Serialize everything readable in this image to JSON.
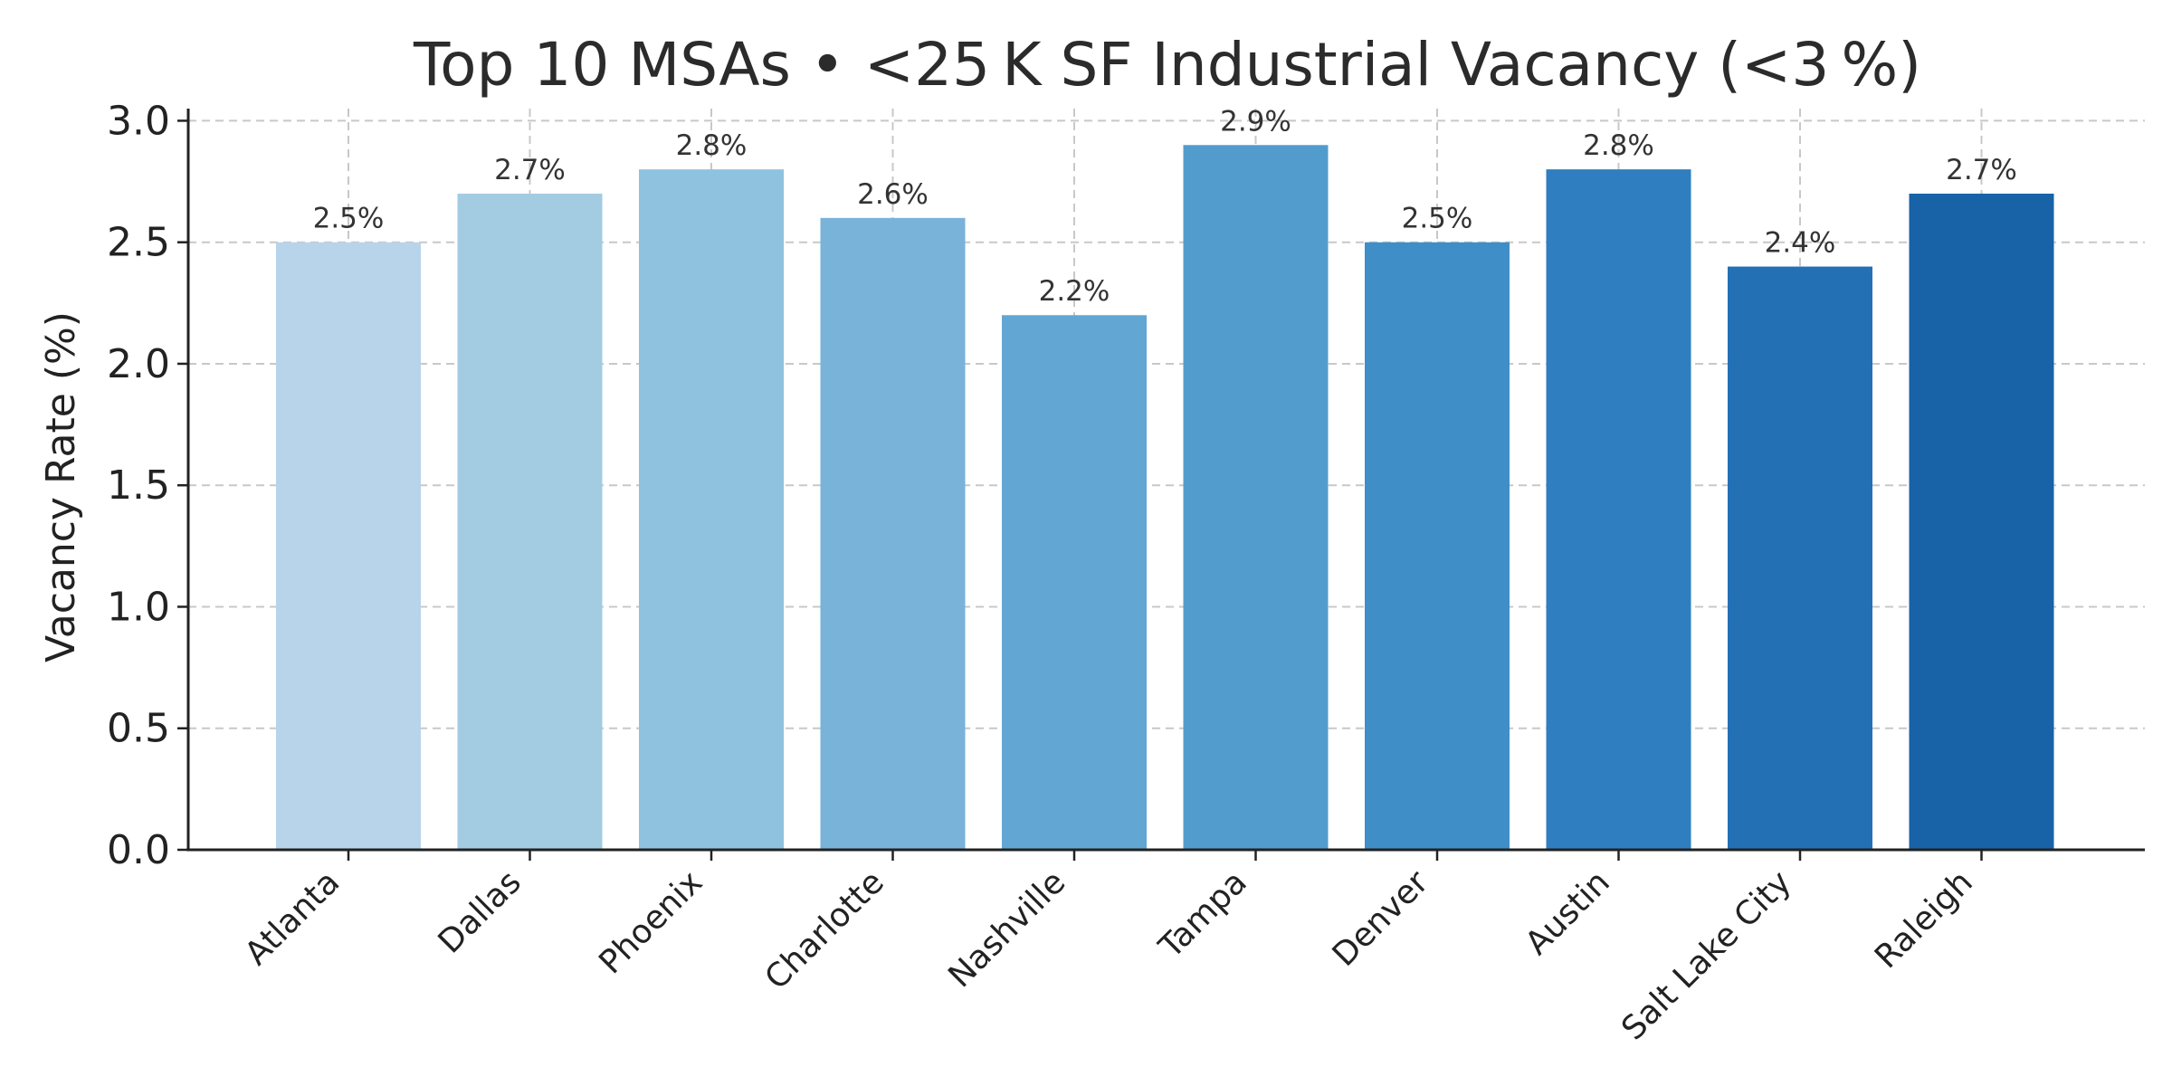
{
  "chart_data": {
    "type": "bar",
    "title": "Top 10 MSAs • <25 K SF Industrial Vacancy (<3 %)",
    "xlabel": "",
    "ylabel": "Vacancy Rate (%)",
    "categories": [
      "Atlanta",
      "Dallas",
      "Phoenix",
      "Charlotte",
      "Nashville",
      "Tampa",
      "Denver",
      "Austin",
      "Salt Lake City",
      "Raleigh"
    ],
    "values": [
      2.5,
      2.7,
      2.8,
      2.6,
      2.2,
      2.9,
      2.5,
      2.8,
      2.4,
      2.7
    ],
    "data_labels": [
      "2.5%",
      "2.7%",
      "2.8%",
      "2.6%",
      "2.2%",
      "2.9%",
      "2.5%",
      "2.8%",
      "2.4%",
      "2.7%"
    ],
    "ylim": [
      0,
      3.05
    ],
    "yticks": [
      "0.0",
      "0.5",
      "1.0",
      "1.5",
      "2.0",
      "2.5",
      "3.0"
    ],
    "grid": true,
    "bar_colors": [
      "#b7d4ea",
      "#a3cbe2",
      "#8fc2df",
      "#79b3d9",
      "#62a6d3",
      "#529ccd",
      "#3f8ec7",
      "#2f7fc0",
      "#2470b5",
      "#1862a8"
    ]
  }
}
